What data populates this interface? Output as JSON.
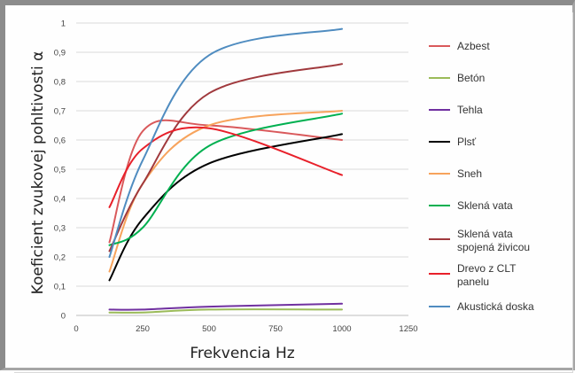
{
  "chart_data": {
    "type": "line",
    "xlabel": "Frekvencia Hz",
    "ylabel": "Koeficient zvukovej pohltivosti α",
    "xlim": [
      0,
      1250
    ],
    "ylim": [
      0,
      1
    ],
    "xticks": [
      0,
      250,
      500,
      750,
      1000,
      1250
    ],
    "yticks": [
      0,
      0.1,
      0.2,
      0.3,
      0.4,
      0.5,
      0.6,
      0.7,
      0.8,
      0.9,
      1
    ],
    "ytick_labels": [
      "0",
      "0,1",
      "0,2",
      "0,3",
      "0,4",
      "0,5",
      "0,6",
      "0,7",
      "0,8",
      "0,9",
      "1"
    ],
    "grid": {
      "horizontal": true,
      "vertical": false
    },
    "legend_position": "right",
    "x": [
      125,
      250,
      500,
      1000
    ],
    "series": [
      {
        "name": "Azbest",
        "color": "#d9595b",
        "values": [
          0.25,
          0.63,
          0.65,
          0.6
        ]
      },
      {
        "name": "Betón",
        "color": "#9bbb59",
        "values": [
          0.01,
          0.01,
          0.02,
          0.02
        ]
      },
      {
        "name": "Tehla",
        "color": "#7030a0",
        "values": [
          0.02,
          0.02,
          0.03,
          0.04
        ]
      },
      {
        "name": "Plsť",
        "color": "#000000",
        "values": [
          0.12,
          0.33,
          0.52,
          0.62
        ]
      },
      {
        "name": "Sneh",
        "color": "#f7a35c",
        "values": [
          0.15,
          0.45,
          0.65,
          0.7
        ]
      },
      {
        "name": "Sklená vata",
        "color": "#00b050",
        "values": [
          0.24,
          0.3,
          0.58,
          0.69
        ]
      },
      {
        "name": "Sklená vata spojená živicou",
        "label_lines": [
          "Sklená vata",
          "spojená živicou"
        ],
        "color": "#a0393d",
        "values": [
          0.22,
          0.45,
          0.76,
          0.86
        ]
      },
      {
        "name": "Drevo z CLT panelu",
        "label_lines": [
          "Drevo z CLT",
          "panelu"
        ],
        "color": "#e8202a",
        "values": [
          0.37,
          0.57,
          0.64,
          0.48
        ]
      },
      {
        "name": "Akustická doska",
        "color": "#4f8cc0",
        "values": [
          0.2,
          0.53,
          0.89,
          0.98
        ]
      }
    ]
  }
}
